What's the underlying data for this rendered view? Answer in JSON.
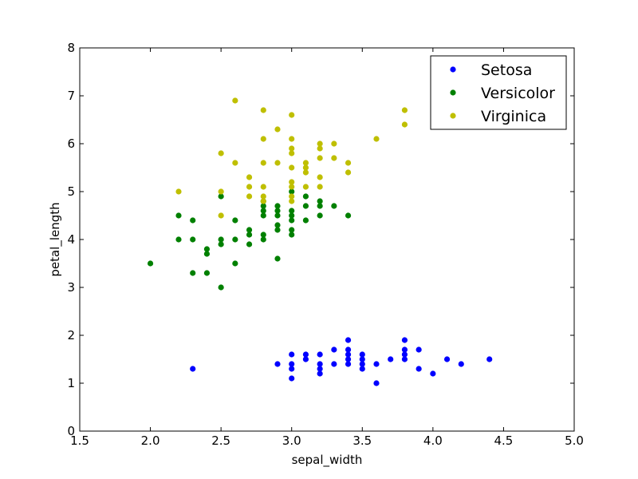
{
  "chart_data": {
    "type": "scatter",
    "xlabel": "sepal_width",
    "ylabel": "petal_length",
    "xlim": [
      1.5,
      5.0
    ],
    "ylim": [
      0,
      8
    ],
    "x_ticks": [
      "1.5",
      "2.0",
      "2.5",
      "3.0",
      "3.5",
      "4.0",
      "4.5",
      "5.0"
    ],
    "y_ticks": [
      "0",
      "1",
      "2",
      "3",
      "4",
      "5",
      "6",
      "7",
      "8"
    ],
    "grid": false,
    "legend_position": "top-right",
    "series": [
      {
        "name": "Setosa",
        "color": "#0000ff",
        "points": [
          [
            2.3,
            1.3
          ],
          [
            2.9,
            1.4
          ],
          [
            3.0,
            1.1
          ],
          [
            3.0,
            1.3
          ],
          [
            3.0,
            1.4
          ],
          [
            3.0,
            1.6
          ],
          [
            3.1,
            1.5
          ],
          [
            3.1,
            1.6
          ],
          [
            3.2,
            1.2
          ],
          [
            3.2,
            1.3
          ],
          [
            3.2,
            1.4
          ],
          [
            3.2,
            1.6
          ],
          [
            3.3,
            1.4
          ],
          [
            3.3,
            1.7
          ],
          [
            3.4,
            1.4
          ],
          [
            3.4,
            1.5
          ],
          [
            3.4,
            1.6
          ],
          [
            3.4,
            1.7
          ],
          [
            3.4,
            1.9
          ],
          [
            3.5,
            1.3
          ],
          [
            3.5,
            1.4
          ],
          [
            3.5,
            1.5
          ],
          [
            3.5,
            1.6
          ],
          [
            3.6,
            1.0
          ],
          [
            3.6,
            1.4
          ],
          [
            3.7,
            1.5
          ],
          [
            3.8,
            1.5
          ],
          [
            3.8,
            1.6
          ],
          [
            3.8,
            1.7
          ],
          [
            3.8,
            1.9
          ],
          [
            3.9,
            1.3
          ],
          [
            3.9,
            1.7
          ],
          [
            4.0,
            1.2
          ],
          [
            4.1,
            1.5
          ],
          [
            4.2,
            1.4
          ],
          [
            4.4,
            1.5
          ]
        ]
      },
      {
        "name": "Versicolor",
        "color": "#008000",
        "points": [
          [
            2.0,
            3.5
          ],
          [
            2.2,
            4.0
          ],
          [
            2.2,
            4.5
          ],
          [
            2.3,
            3.3
          ],
          [
            2.3,
            4.0
          ],
          [
            2.3,
            4.4
          ],
          [
            2.4,
            3.3
          ],
          [
            2.4,
            3.7
          ],
          [
            2.4,
            3.8
          ],
          [
            2.5,
            3.0
          ],
          [
            2.5,
            3.9
          ],
          [
            2.5,
            4.0
          ],
          [
            2.5,
            4.9
          ],
          [
            2.6,
            3.5
          ],
          [
            2.6,
            4.0
          ],
          [
            2.6,
            4.4
          ],
          [
            2.7,
            3.9
          ],
          [
            2.7,
            4.1
          ],
          [
            2.7,
            4.2
          ],
          [
            2.8,
            4.0
          ],
          [
            2.8,
            4.1
          ],
          [
            2.8,
            4.5
          ],
          [
            2.8,
            4.6
          ],
          [
            2.8,
            4.7
          ],
          [
            2.8,
            4.8
          ],
          [
            2.9,
            3.6
          ],
          [
            2.9,
            4.2
          ],
          [
            2.9,
            4.3
          ],
          [
            2.9,
            4.5
          ],
          [
            2.9,
            4.6
          ],
          [
            2.9,
            4.7
          ],
          [
            3.0,
            4.1
          ],
          [
            3.0,
            4.2
          ],
          [
            3.0,
            4.4
          ],
          [
            3.0,
            4.5
          ],
          [
            3.0,
            4.6
          ],
          [
            3.0,
            5.0
          ],
          [
            3.1,
            4.4
          ],
          [
            3.1,
            4.7
          ],
          [
            3.1,
            4.9
          ],
          [
            3.2,
            4.5
          ],
          [
            3.2,
            4.7
          ],
          [
            3.2,
            4.8
          ],
          [
            3.3,
            4.7
          ],
          [
            3.4,
            4.5
          ]
        ]
      },
      {
        "name": "Virginica",
        "color": "#bfbf00",
        "points": [
          [
            2.2,
            5.0
          ],
          [
            2.5,
            4.5
          ],
          [
            2.5,
            5.0
          ],
          [
            2.5,
            5.8
          ],
          [
            2.6,
            5.6
          ],
          [
            2.6,
            6.9
          ],
          [
            2.7,
            4.9
          ],
          [
            2.7,
            5.1
          ],
          [
            2.7,
            5.3
          ],
          [
            2.8,
            4.8
          ],
          [
            2.8,
            4.9
          ],
          [
            2.8,
            5.1
          ],
          [
            2.8,
            5.6
          ],
          [
            2.8,
            6.1
          ],
          [
            2.8,
            6.7
          ],
          [
            2.9,
            5.6
          ],
          [
            2.9,
            6.3
          ],
          [
            3.0,
            4.8
          ],
          [
            3.0,
            4.9
          ],
          [
            3.0,
            5.1
          ],
          [
            3.0,
            5.2
          ],
          [
            3.0,
            5.5
          ],
          [
            3.0,
            5.8
          ],
          [
            3.0,
            5.9
          ],
          [
            3.0,
            6.1
          ],
          [
            3.0,
            6.6
          ],
          [
            3.1,
            5.1
          ],
          [
            3.1,
            5.4
          ],
          [
            3.1,
            5.5
          ],
          [
            3.1,
            5.6
          ],
          [
            3.2,
            5.1
          ],
          [
            3.2,
            5.3
          ],
          [
            3.2,
            5.7
          ],
          [
            3.2,
            5.9
          ],
          [
            3.2,
            6.0
          ],
          [
            3.3,
            5.7
          ],
          [
            3.3,
            6.0
          ],
          [
            3.4,
            5.4
          ],
          [
            3.4,
            5.6
          ],
          [
            3.6,
            6.1
          ],
          [
            3.8,
            6.4
          ],
          [
            3.8,
            6.7
          ]
        ]
      }
    ]
  }
}
